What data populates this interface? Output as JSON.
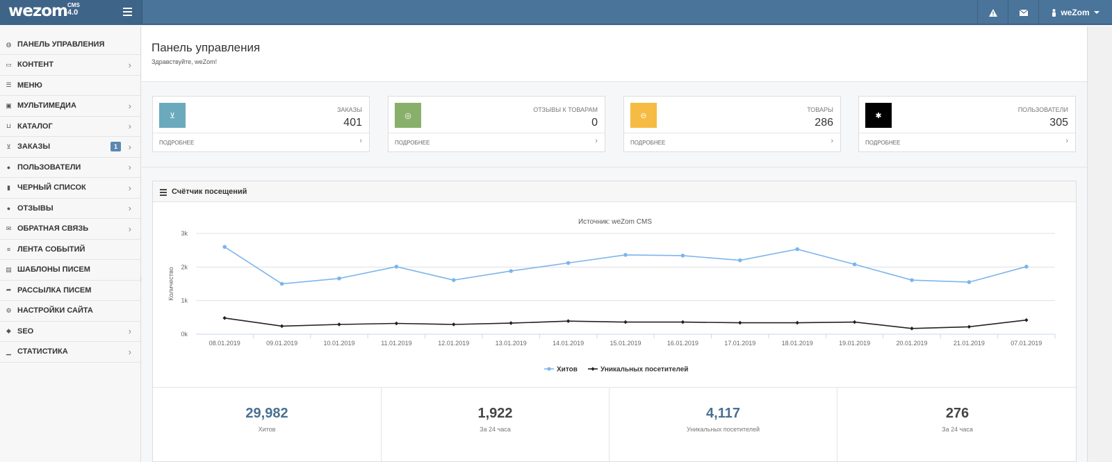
{
  "brand": {
    "name": "wezom",
    "cms": "CMS",
    "version": "4.0"
  },
  "topbar": {
    "alert_icon": "warning-icon",
    "mail_icon": "envelope-icon",
    "user_name": "weZom"
  },
  "sidebar": {
    "items": [
      {
        "label": "Панель управления",
        "icon": "dashboard-icon",
        "chevron": false
      },
      {
        "label": "Контент",
        "icon": "folder-icon",
        "chevron": true
      },
      {
        "label": "Меню",
        "icon": "list-icon",
        "chevron": false
      },
      {
        "label": "Мультимедиа",
        "icon": "image-icon",
        "chevron": true
      },
      {
        "label": "Каталог",
        "icon": "inbox-icon",
        "chevron": true
      },
      {
        "label": "Заказы",
        "icon": "cart-icon",
        "chevron": true,
        "badge": "1"
      },
      {
        "label": "Пользователи",
        "icon": "users-icon",
        "chevron": true
      },
      {
        "label": "Черный список",
        "icon": "file-icon",
        "chevron": true
      },
      {
        "label": "Отзывы",
        "icon": "comments-icon",
        "chevron": true
      },
      {
        "label": "Обратная связь",
        "icon": "envelope-icon",
        "chevron": true
      },
      {
        "label": "Лента событий",
        "icon": "feed-icon",
        "chevron": false
      },
      {
        "label": "Шаблоны писем",
        "icon": "template-icon",
        "chevron": false
      },
      {
        "label": "Рассылка писем",
        "icon": "share-icon",
        "chevron": false
      },
      {
        "label": "Настройки сайта",
        "icon": "cogs-icon",
        "chevron": false
      },
      {
        "label": "SEO",
        "icon": "tag-icon",
        "chevron": true
      },
      {
        "label": "Статистика",
        "icon": "bar-chart-icon",
        "chevron": true
      }
    ]
  },
  "page": {
    "title": "Панель управления",
    "subtitle": "Здравствуйте, weZom!"
  },
  "stats": [
    {
      "label": "Заказы",
      "value": "401",
      "more": "Подробнее",
      "color": "#6baabd",
      "icon": "cart-icon"
    },
    {
      "label": "Отзывы к товарам",
      "value": "0",
      "more": "Подробнее",
      "color": "#88b06a",
      "icon": "comments-icon"
    },
    {
      "label": "Товары",
      "value": "286",
      "more": "Подробнее",
      "color": "#f6bb42",
      "icon": "gamepad-icon"
    },
    {
      "label": "Пользователи",
      "value": "305",
      "more": "Подробнее",
      "color": "#000000",
      "icon": "users-icon"
    }
  ],
  "panel": {
    "title": "Счётчик посещений"
  },
  "chart_data": {
    "type": "line",
    "title": "Источник: weZom CMS",
    "ylabel": "Количество",
    "xlabel": "",
    "ylim": [
      0,
      3000
    ],
    "yticks": [
      "0k",
      "1k",
      "2k",
      "3k"
    ],
    "ytick_values": [
      0,
      1000,
      2000,
      3000
    ],
    "grid": true,
    "legend_position": "bottom",
    "categories": [
      "08.01.2019",
      "09.01.2019",
      "10.01.2019",
      "11.01.2019",
      "12.01.2019",
      "13.01.2019",
      "14.01.2019",
      "15.01.2019",
      "16.01.2019",
      "17.01.2019",
      "18.01.2019",
      "19.01.2019",
      "20.01.2019",
      "21.01.2019",
      "07.01.2019"
    ],
    "series": [
      {
        "name": "Хитов",
        "color": "#7cb5ec",
        "values": [
          2600,
          1500,
          1660,
          2010,
          1610,
          1880,
          2120,
          2360,
          2340,
          2200,
          2530,
          2080,
          1610,
          1550,
          2010
        ]
      },
      {
        "name": "Уникальных посетителей",
        "color": "#222222",
        "values": [
          480,
          240,
          290,
          320,
          290,
          330,
          390,
          360,
          360,
          340,
          340,
          360,
          170,
          220,
          420
        ]
      }
    ]
  },
  "totals": [
    {
      "value": "29,982",
      "caption": "Хитов",
      "color": "#4a6f91"
    },
    {
      "value": "1,922",
      "caption": "За 24 часа",
      "color": "#444444"
    },
    {
      "value": "4,117",
      "caption": "Уникальных посетителей",
      "color": "#4a6f91"
    },
    {
      "value": "276",
      "caption": "За 24 часа",
      "color": "#444444"
    }
  ]
}
